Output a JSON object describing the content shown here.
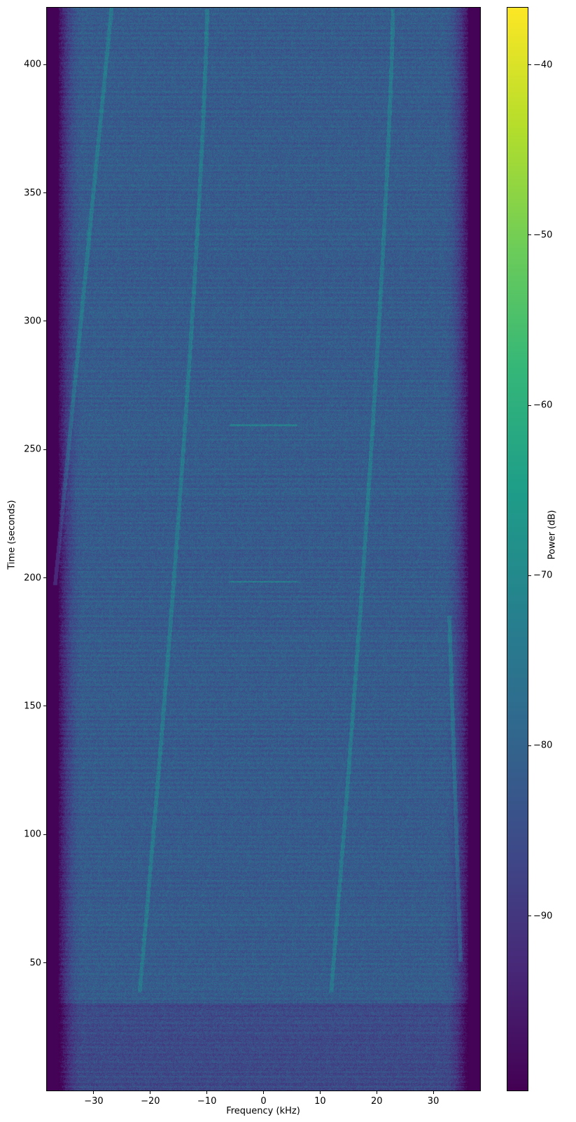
{
  "chart_data": {
    "type": "heatmap",
    "xlabel": "Frequency (kHz)",
    "ylabel": "Time (seconds)",
    "xlim": [
      -38.4,
      38.4
    ],
    "ylim": [
      0,
      422.4
    ],
    "xticks": [
      -30,
      -20,
      -10,
      0,
      10,
      20,
      30
    ],
    "xtick_labels": [
      "−30",
      "−20",
      "−10",
      "0",
      "10",
      "20",
      "30"
    ],
    "yticks": [
      50,
      100,
      150,
      200,
      250,
      300,
      350,
      400
    ],
    "ytick_labels": [
      "50",
      "100",
      "150",
      "200",
      "250",
      "300",
      "350",
      "400"
    ],
    "colorbar": {
      "label": "Power (dB)",
      "colormap": "viridis",
      "range": [
        -100.3,
        -36.6
      ],
      "ticks": [
        -40,
        -50,
        -60,
        -70,
        -80,
        -90
      ],
      "tick_labels": [
        "−40",
        "−50",
        "−60",
        "−70",
        "−80",
        "−90"
      ]
    },
    "background_level_db": -82,
    "grid": false
  }
}
